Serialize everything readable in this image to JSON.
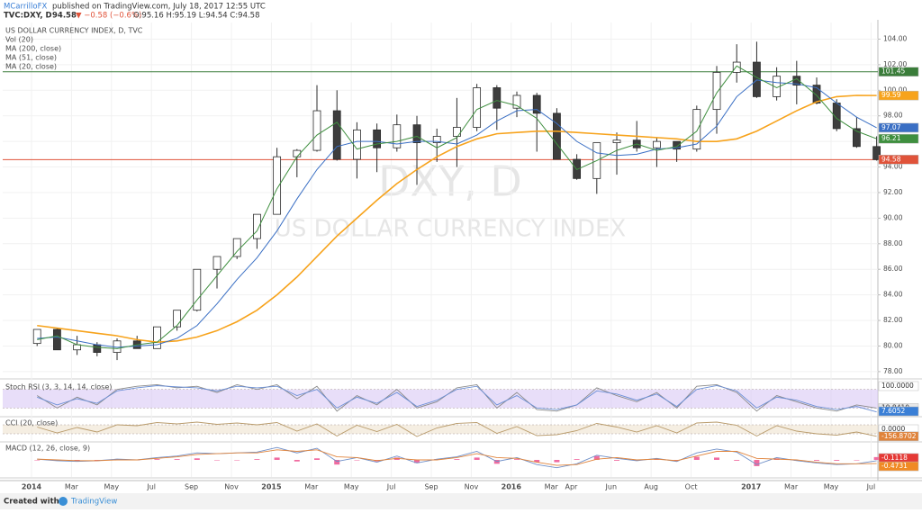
{
  "header": {
    "author": "MCarrilloFX",
    "published": "published on TradingView.com, July 18, 2017 12:55 UTC",
    "symbol": "TVC:DXY, D",
    "last": "94.58",
    "change": "▼ −0.58 (−0.6%)",
    "ohlc": "O:95.16 H:95.19 L:94.54 C:94.58"
  },
  "watermark": {
    "symbol": "DXY, D",
    "name": "US DOLLAR CURRENCY INDEX"
  },
  "footer": {
    "created": "Created with",
    "brand": "TradingView"
  },
  "chart_data": [
    {
      "type": "candlestick",
      "title": "US DOLLAR CURRENCY INDEX, D, TVC",
      "volume_label": "Vol (20)",
      "categories": [
        "2014",
        null,
        "Mar",
        null,
        "May",
        null,
        "Jul",
        null,
        "Sep",
        null,
        "Nov",
        null,
        "2015",
        null,
        "Mar",
        null,
        "May",
        null,
        "Jul",
        null,
        "Sep",
        null,
        "Nov",
        null,
        "2016",
        null,
        "Mar",
        "Apr",
        null,
        "Jun",
        null,
        "Aug",
        null,
        "Oct",
        null,
        null,
        "2017",
        null,
        "Mar",
        null,
        "May",
        null,
        "Jul"
      ],
      "open": [
        80.2,
        81.3,
        79.7,
        80.1,
        79.5,
        80.4,
        79.8,
        81.5,
        82.8,
        86.0,
        87.0,
        88.4,
        90.3,
        94.8,
        95.3,
        98.4,
        94.6,
        96.9,
        95.5,
        97.3,
        95.9,
        96.4,
        97.1,
        100.2,
        98.6,
        99.6,
        98.2,
        94.6,
        93.1,
        95.9,
        96.1,
        95.5,
        96.0,
        95.4,
        98.5,
        101.4,
        102.2,
        99.5,
        101.1,
        100.4,
        99.0,
        97.0,
        95.6
      ],
      "high": [
        81.3,
        81.4,
        80.8,
        80.3,
        80.6,
        80.8,
        81.5,
        82.8,
        86.0,
        87.0,
        88.4,
        90.3,
        95.5,
        95.4,
        100.4,
        100.0,
        97.5,
        97.4,
        98.1,
        98.0,
        97.0,
        99.4,
        100.5,
        100.4,
        99.9,
        99.8,
        98.6,
        95.0,
        95.8,
        96.7,
        97.6,
        96.3,
        96.0,
        98.8,
        101.9,
        103.6,
        103.8,
        101.8,
        102.3,
        101.0,
        99.3,
        97.9,
        96.4
      ],
      "low": [
        80.0,
        79.8,
        79.3,
        79.2,
        78.9,
        79.8,
        79.8,
        81.2,
        82.7,
        84.5,
        86.8,
        87.6,
        90.3,
        93.2,
        95.2,
        94.5,
        93.1,
        93.6,
        95.2,
        92.6,
        94.4,
        94.0,
        96.8,
        96.9,
        97.9,
        95.2,
        94.6,
        93.0,
        91.9,
        93.4,
        95.2,
        94.0,
        94.4,
        95.2,
        96.6,
        100.6,
        99.4,
        99.2,
        98.9,
        98.9,
        96.8,
        95.5,
        94.5
      ],
      "close": [
        81.3,
        79.7,
        80.1,
        79.5,
        80.4,
        79.8,
        81.5,
        82.8,
        86.0,
        87.0,
        88.4,
        90.3,
        94.8,
        95.3,
        98.4,
        94.6,
        96.9,
        95.5,
        97.3,
        95.9,
        96.4,
        97.1,
        100.2,
        98.6,
        99.6,
        98.2,
        94.6,
        93.1,
        95.9,
        96.1,
        95.5,
        96.0,
        95.4,
        98.5,
        101.4,
        102.2,
        99.5,
        101.1,
        100.4,
        99.0,
        97.0,
        95.6,
        94.58
      ],
      "up_color": "#ffffff",
      "down_color": "#3d3d3d",
      "edge_color": "#2b2b2b",
      "series": [
        {
          "name": "MA (200, close)",
          "color": "#f7a31c",
          "values": [
            81.6,
            81.4,
            81.2,
            81.0,
            80.8,
            80.5,
            80.3,
            80.4,
            80.7,
            81.2,
            81.9,
            82.8,
            84.0,
            85.4,
            87.0,
            88.6,
            90.0,
            91.4,
            92.7,
            93.8,
            94.8,
            95.6,
            96.2,
            96.6,
            96.7,
            96.8,
            96.8,
            96.7,
            96.6,
            96.5,
            96.4,
            96.3,
            96.2,
            96.0,
            96.0,
            96.2,
            96.8,
            97.6,
            98.4,
            99.1,
            99.5,
            99.6,
            99.59
          ]
        },
        {
          "name": "MA (51, close)",
          "color": "#3a6fc4",
          "values": [
            80.6,
            80.7,
            80.4,
            80.1,
            79.9,
            80.0,
            80.1,
            80.6,
            81.6,
            83.3,
            85.2,
            86.9,
            89.0,
            91.5,
            93.8,
            95.6,
            96.0,
            96.0,
            95.8,
            96.0,
            96.0,
            95.8,
            96.5,
            97.6,
            98.4,
            98.5,
            97.4,
            96.0,
            95.1,
            94.9,
            95.0,
            95.4,
            95.5,
            95.8,
            97.2,
            99.5,
            100.8,
            100.6,
            100.5,
            100.2,
            99.0,
            97.9,
            97.07
          ]
        },
        {
          "name": "MA (20, close)",
          "color": "#3f8f3f",
          "values": [
            80.5,
            80.8,
            80.1,
            79.9,
            79.8,
            80.1,
            80.3,
            81.6,
            83.6,
            85.5,
            87.4,
            89.0,
            92.3,
            94.8,
            96.5,
            97.5,
            95.4,
            95.8,
            96.0,
            96.4,
            95.5,
            96.3,
            98.5,
            99.2,
            98.8,
            97.8,
            95.8,
            93.8,
            94.5,
            95.3,
            95.8,
            95.3,
            95.6,
            96.8,
            99.8,
            101.9,
            101.0,
            100.2,
            100.9,
            99.6,
            97.8,
            96.8,
            96.21
          ]
        }
      ],
      "levels": [
        {
          "value": 101.45,
          "color": "#3a7d3a"
        },
        {
          "value": 94.58,
          "color": "#e0533a"
        }
      ],
      "tags": [
        {
          "value": 101.45,
          "color": "#3a7d3a"
        },
        {
          "value": 99.59,
          "color": "#f7a31c"
        },
        {
          "value": 97.07,
          "color": "#3a6fc4"
        },
        {
          "value": 96.21,
          "color": "#3f8f3f"
        },
        {
          "value": 94.58,
          "color": "#e0533a"
        }
      ],
      "ylim": [
        77.5,
        105.3
      ],
      "yticks": [
        {
          "value": 78,
          "label": "78.00"
        },
        {
          "value": 80,
          "label": "80.00"
        },
        {
          "value": 82,
          "label": "82.00"
        },
        {
          "value": 84,
          "label": "84.00"
        },
        {
          "value": 86,
          "label": "86.00"
        },
        {
          "value": 88,
          "label": "88.00"
        },
        {
          "value": 90,
          "label": "90.00"
        },
        {
          "value": 92,
          "label": "92.00"
        },
        {
          "value": 94,
          "label": "94.00"
        },
        {
          "value": 96,
          "label": "96.00"
        },
        {
          "value": 98,
          "label": "98.00"
        },
        {
          "value": 100,
          "label": "100.00"
        },
        {
          "value": 102,
          "label": "102.00"
        },
        {
          "value": 104,
          "label": "104.00"
        }
      ],
      "grid": true
    },
    {
      "type": "line",
      "title": "Stoch RSI (3, 3, 14, 14, close)",
      "band": [
        20,
        80
      ],
      "band_color": "#d9c8f5",
      "series": [
        {
          "color": "#8a8a8a",
          "values": [
            60,
            20,
            55,
            30,
            80,
            90,
            95,
            85,
            90,
            70,
            95,
            80,
            95,
            50,
            90,
            10,
            60,
            30,
            80,
            20,
            40,
            85,
            95,
            20,
            70,
            15,
            10,
            30,
            85,
            60,
            40,
            70,
            20,
            90,
            95,
            70,
            10,
            60,
            40,
            20,
            10,
            30,
            19.841
          ]
        },
        {
          "color": "#6b8fd6",
          "values": [
            55,
            30,
            50,
            35,
            75,
            85,
            92,
            88,
            85,
            75,
            90,
            85,
            90,
            60,
            80,
            20,
            55,
            35,
            70,
            25,
            45,
            80,
            90,
            30,
            60,
            20,
            15,
            30,
            75,
            65,
            45,
            65,
            25,
            80,
            92,
            75,
            20,
            55,
            45,
            25,
            15,
            25,
            7.6052
          ]
        }
      ],
      "tags": [
        {
          "value": 100,
          "label": "100.0000",
          "color": "#ffffff"
        },
        {
          "value": 19.841,
          "label": "19.8410",
          "color": "#e8e8e8"
        },
        {
          "value": 7.6052,
          "color": "#3a7fd6"
        }
      ],
      "ylim": [
        -5,
        105
      ]
    },
    {
      "type": "line",
      "title": "CCI (20, close)",
      "band": [
        -100,
        100
      ],
      "band_color": "#efe2cf",
      "series": [
        {
          "color": "#b89a6a",
          "values": [
            50,
            -80,
            40,
            -60,
            100,
            80,
            150,
            120,
            160,
            110,
            140,
            100,
            150,
            -40,
            120,
            -150,
            90,
            -50,
            110,
            -160,
            30,
            130,
            150,
            -90,
            60,
            -140,
            -120,
            -30,
            130,
            50,
            -60,
            80,
            -80,
            140,
            160,
            90,
            -150,
            80,
            -40,
            -100,
            -130,
            -60,
            -156.8702
          ]
        }
      ],
      "tags": [
        {
          "value": 0,
          "label": "0.0000",
          "color": "#ffffff"
        },
        {
          "value": -156.8702,
          "color": "#e0833a"
        }
      ],
      "ylim": [
        -260,
        260
      ]
    },
    {
      "type": "macd",
      "title": "MACD (12, 26, close, 9)",
      "hist_color": "#f06ba0",
      "series": [
        {
          "color": "#6f8fc8",
          "values": [
            0.1,
            -0.1,
            -0.2,
            -0.1,
            0.1,
            0.0,
            0.3,
            0.5,
            0.9,
            0.8,
            0.9,
            1.0,
            1.6,
            0.9,
            1.5,
            -0.2,
            0.3,
            -0.3,
            0.5,
            -0.4,
            0.1,
            0.4,
            1.1,
            -0.2,
            0.3,
            -0.6,
            -1.0,
            -0.5,
            0.6,
            0.2,
            -0.1,
            0.2,
            -0.2,
            0.9,
            1.4,
            1.0,
            -0.6,
            0.3,
            -0.1,
            -0.4,
            -0.6,
            -0.5,
            -0.1118
          ]
        },
        {
          "color": "#e0833a",
          "values": [
            0.1,
            0.0,
            -0.1,
            -0.1,
            0.0,
            0.0,
            0.2,
            0.4,
            0.7,
            0.8,
            0.9,
            0.9,
            1.3,
            1.1,
            1.3,
            0.4,
            0.3,
            -0.1,
            0.2,
            0.0,
            0.0,
            0.3,
            0.8,
            0.3,
            0.2,
            -0.3,
            -0.7,
            -0.6,
            0.1,
            0.3,
            0.0,
            0.1,
            -0.1,
            0.5,
            1.1,
            1.1,
            0.2,
            0.1,
            0.0,
            -0.3,
            -0.5,
            -0.5,
            -0.4731
          ]
        }
      ],
      "tags": [
        {
          "value": -0.1118,
          "color": "#e53935"
        },
        {
          "value": -0.4731,
          "color": "#f08a24"
        }
      ],
      "ylim": [
        -2.2,
        2.2
      ]
    }
  ]
}
